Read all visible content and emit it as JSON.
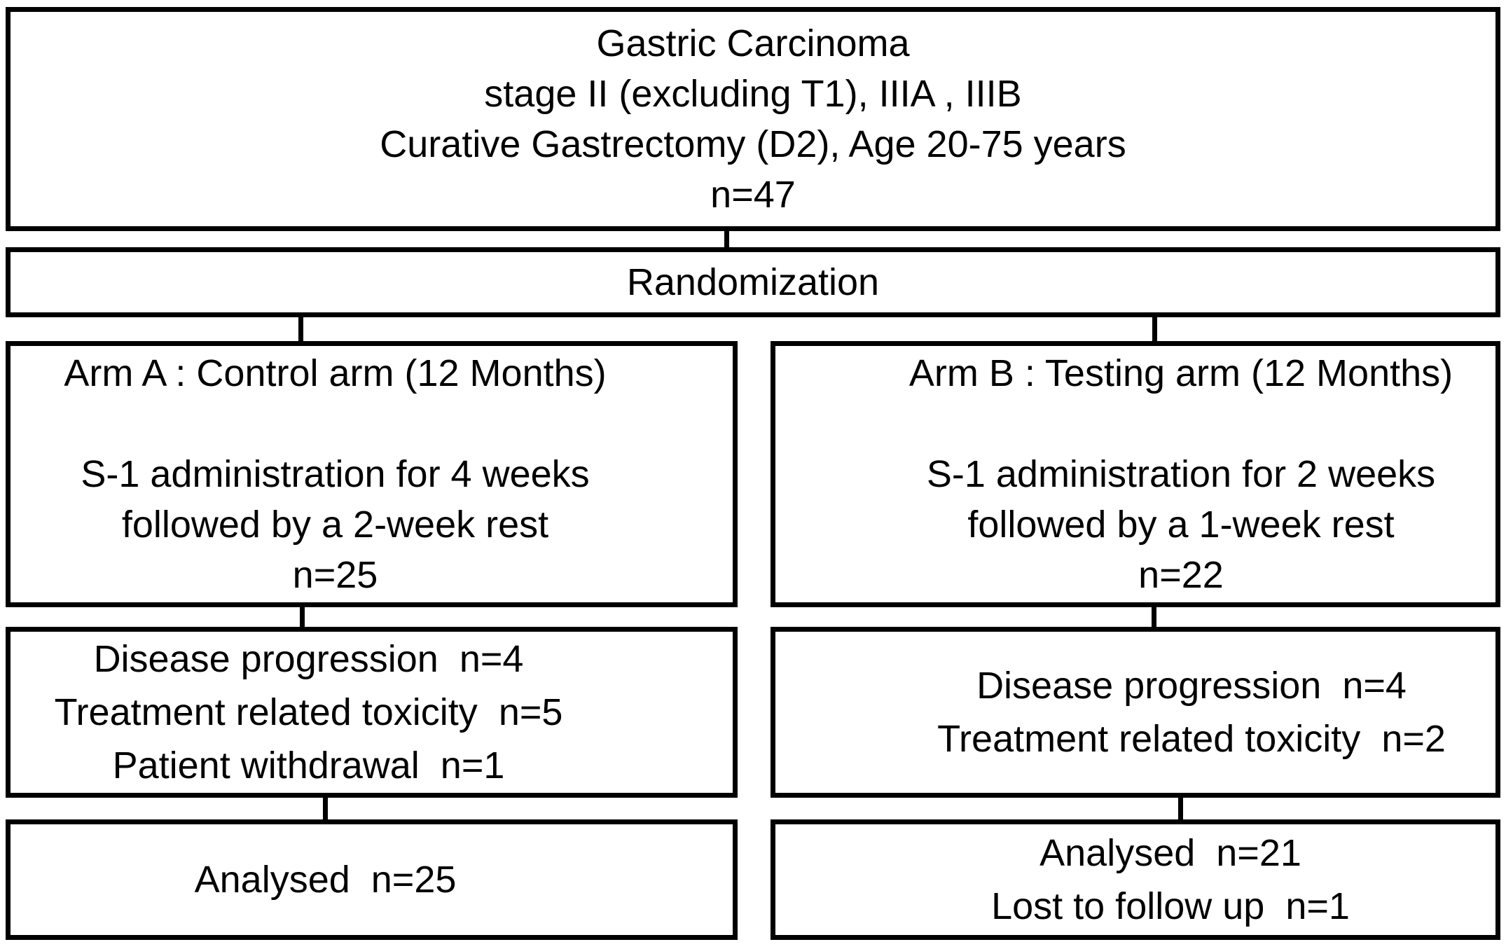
{
  "diagram": {
    "colors": {
      "border": "#000000",
      "background": "#ffffff",
      "text": "#000000"
    },
    "enrollment": {
      "lines": [
        "Gastric Carcinoma",
        "stage II (excluding T1), IIIA , IIIB",
        "Curative Gastrectomy (D2), Age 20-75 years",
        "n=47"
      ]
    },
    "randomization": {
      "label": "Randomization"
    },
    "arm_a": {
      "lines": [
        "Arm A : Control arm (12 Months)",
        "",
        "S-1 administration for 4 weeks",
        "followed by a 2-week rest",
        "n=25"
      ]
    },
    "arm_b": {
      "lines": [
        "Arm B : Testing arm (12 Months)",
        "",
        "S-1 administration for 2 weeks",
        "followed by a 1-week rest",
        "n=22"
      ]
    },
    "dropout_a": {
      "lines": [
        "Disease progression  n=4",
        "Treatment related toxicity  n=5",
        "Patient withdrawal  n=1"
      ]
    },
    "dropout_b": {
      "lines": [
        "Disease progression  n=4",
        "Treatment related toxicity  n=2"
      ]
    },
    "analysed_a": {
      "lines": [
        "Analysed  n=25"
      ]
    },
    "analysed_b": {
      "lines": [
        "Analysed  n=21",
        "Lost to follow up  n=1"
      ]
    }
  }
}
